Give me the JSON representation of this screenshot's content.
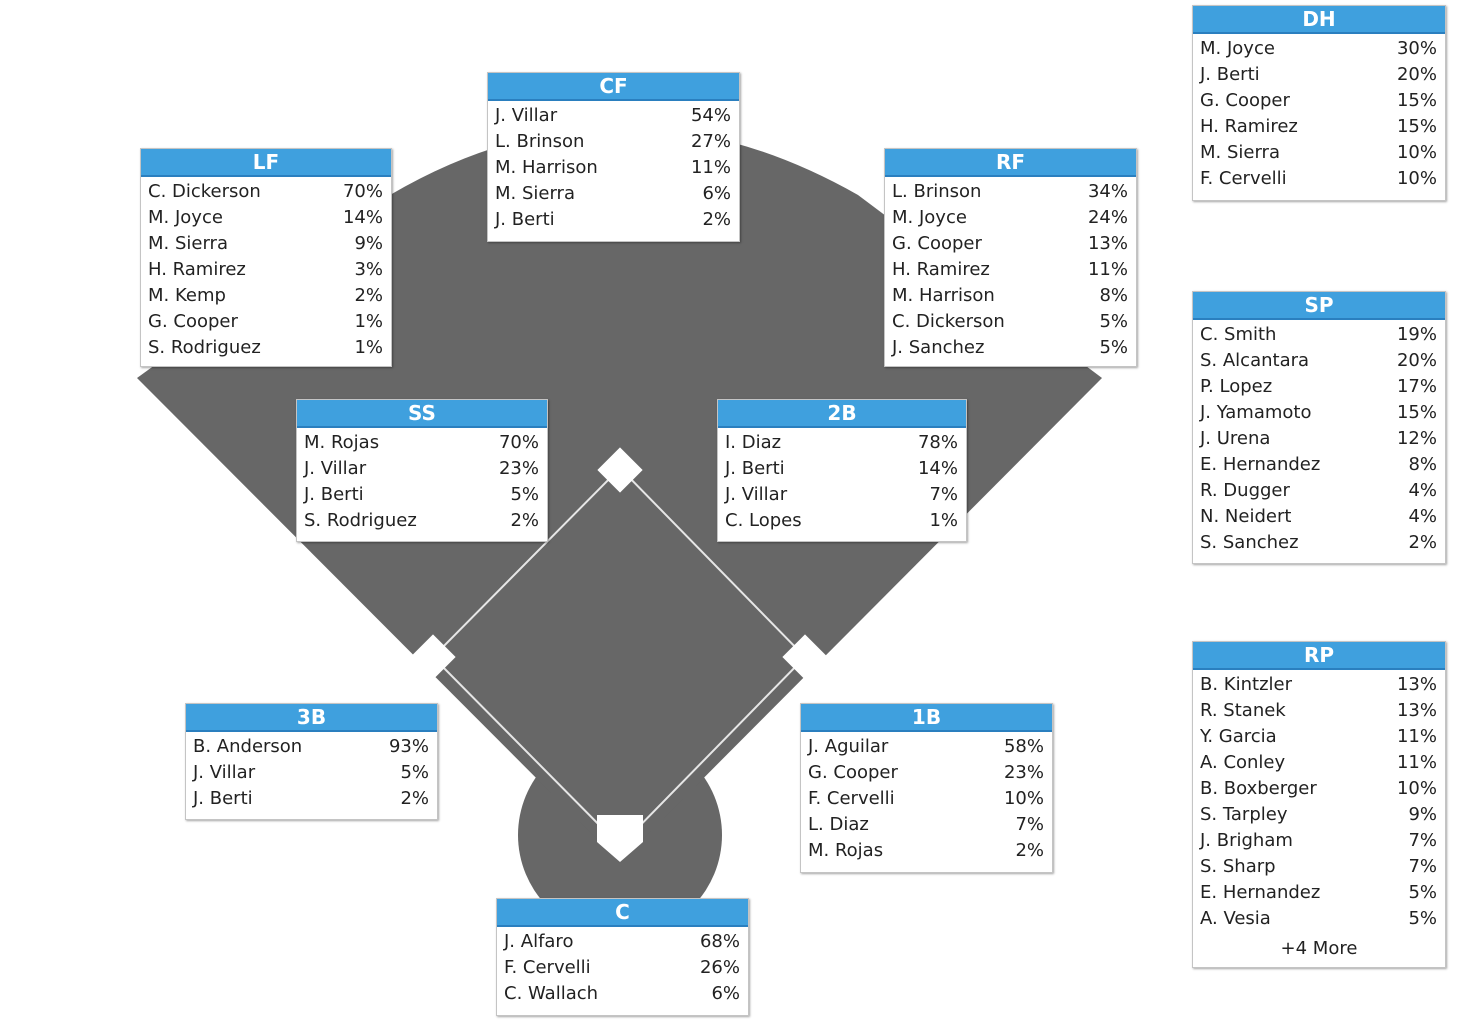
{
  "colors": {
    "header": "#3fa0de",
    "field": "#676767",
    "base": "#ffffff"
  },
  "positions": {
    "cf": {
      "title": "CF",
      "players": [
        {
          "name": "J. Villar",
          "pct": "54%"
        },
        {
          "name": "L. Brinson",
          "pct": "27%"
        },
        {
          "name": "M. Harrison",
          "pct": "11%"
        },
        {
          "name": "M. Sierra",
          "pct": "6%"
        },
        {
          "name": "J. Berti",
          "pct": "2%"
        }
      ]
    },
    "lf": {
      "title": "LF",
      "players": [
        {
          "name": "C. Dickerson",
          "pct": "70%"
        },
        {
          "name": "M. Joyce",
          "pct": "14%"
        },
        {
          "name": "M. Sierra",
          "pct": "9%"
        },
        {
          "name": "H. Ramirez",
          "pct": "3%"
        },
        {
          "name": "M. Kemp",
          "pct": "2%"
        },
        {
          "name": "G. Cooper",
          "pct": "1%"
        },
        {
          "name": "S. Rodriguez",
          "pct": "1%"
        }
      ]
    },
    "rf": {
      "title": "RF",
      "players": [
        {
          "name": "L. Brinson",
          "pct": "34%"
        },
        {
          "name": "M. Joyce",
          "pct": "24%"
        },
        {
          "name": "G. Cooper",
          "pct": "13%"
        },
        {
          "name": "H. Ramirez",
          "pct": "11%"
        },
        {
          "name": "M. Harrison",
          "pct": "8%"
        },
        {
          "name": "C. Dickerson",
          "pct": "5%"
        },
        {
          "name": "J. Sanchez",
          "pct": "5%"
        }
      ]
    },
    "ss": {
      "title": "SS",
      "players": [
        {
          "name": "M. Rojas",
          "pct": "70%"
        },
        {
          "name": "J. Villar",
          "pct": "23%"
        },
        {
          "name": "J. Berti",
          "pct": "5%"
        },
        {
          "name": "S. Rodriguez",
          "pct": "2%"
        }
      ]
    },
    "2b": {
      "title": "2B",
      "players": [
        {
          "name": "I. Diaz",
          "pct": "78%"
        },
        {
          "name": "J. Berti",
          "pct": "14%"
        },
        {
          "name": "J. Villar",
          "pct": "7%"
        },
        {
          "name": "C. Lopes",
          "pct": "1%"
        }
      ]
    },
    "3b": {
      "title": "3B",
      "players": [
        {
          "name": "B. Anderson",
          "pct": "93%"
        },
        {
          "name": "J. Villar",
          "pct": "5%"
        },
        {
          "name": "J. Berti",
          "pct": "2%"
        }
      ]
    },
    "1b": {
      "title": "1B",
      "players": [
        {
          "name": "J. Aguilar",
          "pct": "58%"
        },
        {
          "name": "G. Cooper",
          "pct": "23%"
        },
        {
          "name": "F. Cervelli",
          "pct": "10%"
        },
        {
          "name": "L. Diaz",
          "pct": "7%"
        },
        {
          "name": "M. Rojas",
          "pct": "2%"
        }
      ]
    },
    "c": {
      "title": "C",
      "players": [
        {
          "name": "J. Alfaro",
          "pct": "68%"
        },
        {
          "name": "F. Cervelli",
          "pct": "26%"
        },
        {
          "name": "C. Wallach",
          "pct": "6%"
        }
      ]
    },
    "dh": {
      "title": "DH",
      "players": [
        {
          "name": "M. Joyce",
          "pct": "30%"
        },
        {
          "name": "J. Berti",
          "pct": "20%"
        },
        {
          "name": "G. Cooper",
          "pct": "15%"
        },
        {
          "name": "H. Ramirez",
          "pct": "15%"
        },
        {
          "name": "M. Sierra",
          "pct": "10%"
        },
        {
          "name": "F. Cervelli",
          "pct": "10%"
        }
      ]
    },
    "sp": {
      "title": "SP",
      "players": [
        {
          "name": "C. Smith",
          "pct": "19%"
        },
        {
          "name": "S. Alcantara",
          "pct": "20%"
        },
        {
          "name": "P. Lopez",
          "pct": "17%"
        },
        {
          "name": "J. Yamamoto",
          "pct": "15%"
        },
        {
          "name": "J. Urena",
          "pct": "12%"
        },
        {
          "name": "E. Hernandez",
          "pct": "8%"
        },
        {
          "name": "R. Dugger",
          "pct": "4%"
        },
        {
          "name": "N. Neidert",
          "pct": "4%"
        },
        {
          "name": "S. Sanchez",
          "pct": "2%"
        }
      ]
    },
    "rp": {
      "title": "RP",
      "players": [
        {
          "name": "B. Kintzler",
          "pct": "13%"
        },
        {
          "name": "R. Stanek",
          "pct": "13%"
        },
        {
          "name": "Y. Garcia",
          "pct": "11%"
        },
        {
          "name": "A. Conley",
          "pct": "11%"
        },
        {
          "name": "B. Boxberger",
          "pct": "10%"
        },
        {
          "name": "S. Tarpley",
          "pct": "9%"
        },
        {
          "name": "J. Brigham",
          "pct": "7%"
        },
        {
          "name": "S. Sharp",
          "pct": "7%"
        },
        {
          "name": "E. Hernandez",
          "pct": "5%"
        },
        {
          "name": "A. Vesia",
          "pct": "5%"
        }
      ],
      "more": "+4 More"
    }
  }
}
